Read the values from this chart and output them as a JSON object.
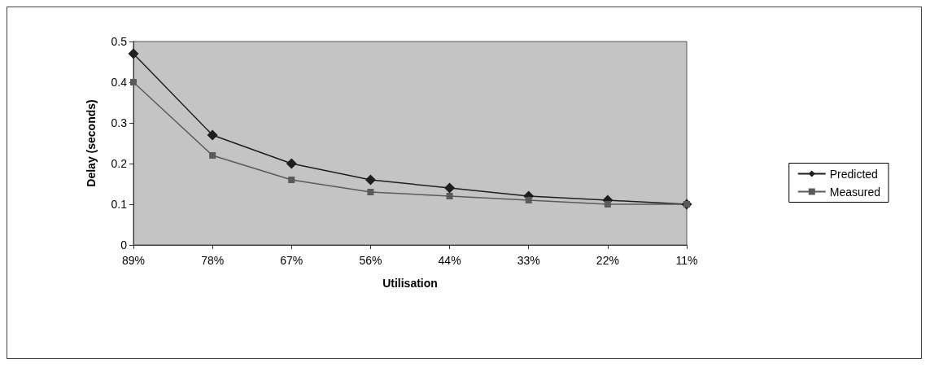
{
  "chart_data": {
    "type": "line",
    "xlabel": "Utilisation",
    "ylabel": "Delay (seconds)",
    "categories": [
      "89%",
      "78%",
      "67%",
      "56%",
      "44%",
      "33%",
      "22%",
      "11%"
    ],
    "series": [
      {
        "name": "Predicted",
        "color": "#1e1e1e",
        "marker": "diamond",
        "values": [
          0.47,
          0.27,
          0.2,
          0.16,
          0.14,
          0.12,
          0.11,
          0.1
        ]
      },
      {
        "name": "Measured",
        "color": "#5a5a5a",
        "marker": "square",
        "values": [
          0.4,
          0.22,
          0.16,
          0.13,
          0.12,
          0.11,
          0.1,
          0.1
        ]
      }
    ],
    "ylim": [
      0,
      0.5
    ],
    "yticks": [
      0,
      0.1,
      0.2,
      0.3,
      0.4,
      0.5
    ],
    "grid": false,
    "legend": "right"
  }
}
